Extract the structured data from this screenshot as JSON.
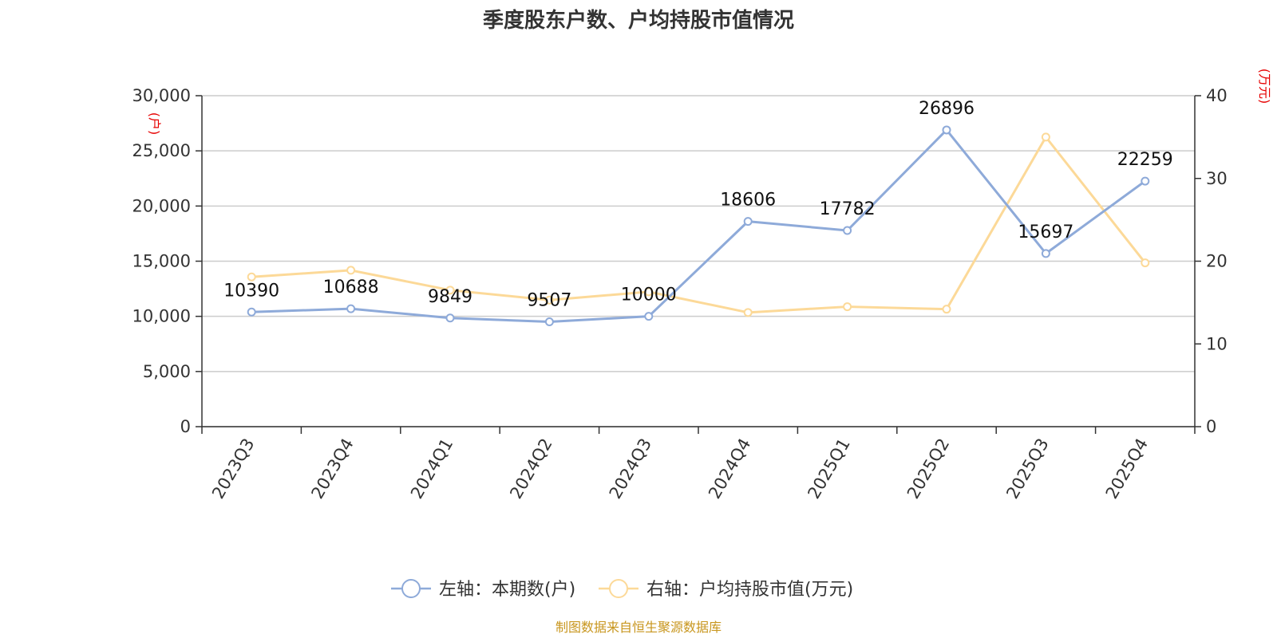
{
  "chart_data": {
    "type": "line",
    "title": "季度股东户数、户均持股市值情况",
    "categories": [
      "2023Q3",
      "2023Q4",
      "2024Q1",
      "2024Q2",
      "2024Q3",
      "2024Q4",
      "2025Q1",
      "2025Q2",
      "2025Q3",
      "2025Q4"
    ],
    "series": [
      {
        "name": "左轴：本期数(户)",
        "axis": "left",
        "color": "#8eaad9",
        "values": [
          10390,
          10688,
          9849,
          9507,
          10000,
          18606,
          17782,
          26896,
          15697,
          22259
        ],
        "data_labels": [
          "10390",
          "10688",
          "9849",
          "9507",
          "10000",
          "18606",
          "17782",
          "26896",
          "15697",
          "22259"
        ]
      },
      {
        "name": "右轴：户均持股市值(万元)",
        "axis": "right",
        "color": "#fcd998",
        "values": [
          18.1,
          18.9,
          16.5,
          15.3,
          16.3,
          13.8,
          14.5,
          14.2,
          35.0,
          19.8
        ]
      }
    ],
    "y_left": {
      "unit_label": "(户)",
      "ylim": [
        0,
        30000
      ],
      "ticks": [
        0,
        5000,
        10000,
        15000,
        20000,
        25000,
        30000
      ],
      "tick_labels": [
        "0",
        "5,000",
        "10,000",
        "15,000",
        "20,000",
        "25,000",
        "30,000"
      ]
    },
    "y_right": {
      "unit_label": "(万元)",
      "ylim": [
        0,
        40
      ],
      "ticks": [
        0,
        10,
        20,
        30,
        40
      ],
      "tick_labels": [
        "0",
        "10",
        "20",
        "30",
        "40"
      ]
    },
    "grid": true,
    "legend_position": "bottom-center",
    "source": "制图数据来自恒生聚源数据库"
  }
}
